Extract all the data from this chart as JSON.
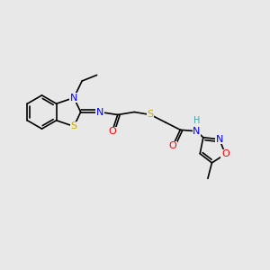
{
  "background_color": "#e8e8e8",
  "atom_colors": {
    "C": "#000000",
    "N": "#0000ff",
    "O": "#ff0000",
    "S": "#ccaa00",
    "H": "#48a0a0"
  },
  "font_size": 8.0,
  "figsize": [
    3.0,
    3.0
  ],
  "dpi": 100,
  "lw": 1.2
}
